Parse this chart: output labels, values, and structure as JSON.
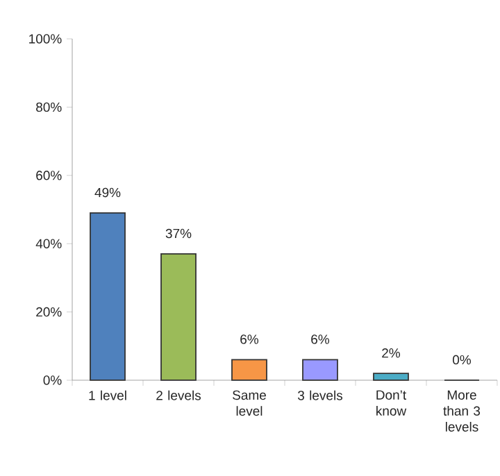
{
  "chart_data": {
    "type": "bar",
    "categories": [
      "1 level",
      "2 levels",
      "Same level",
      "3 levels",
      "Don’t know",
      "More than 3 levels"
    ],
    "values": [
      49,
      37,
      6,
      6,
      2,
      0
    ],
    "value_labels": [
      "49%",
      "37%",
      "6%",
      "6%",
      "2%",
      "0%"
    ],
    "colors": [
      "#4f81bd",
      "#9bbb59",
      "#f79646",
      "#9999ff",
      "#4bacc6",
      "#8064a2"
    ],
    "ylim": [
      0,
      100
    ],
    "yticks": [
      {
        "value": 0,
        "label": "0%"
      },
      {
        "value": 20,
        "label": "20%"
      },
      {
        "value": 40,
        "label": "40%"
      },
      {
        "value": 60,
        "label": "60%"
      },
      {
        "value": 80,
        "label": "80%"
      },
      {
        "value": 100,
        "label": "100%"
      }
    ],
    "grid": false,
    "legend": false
  }
}
